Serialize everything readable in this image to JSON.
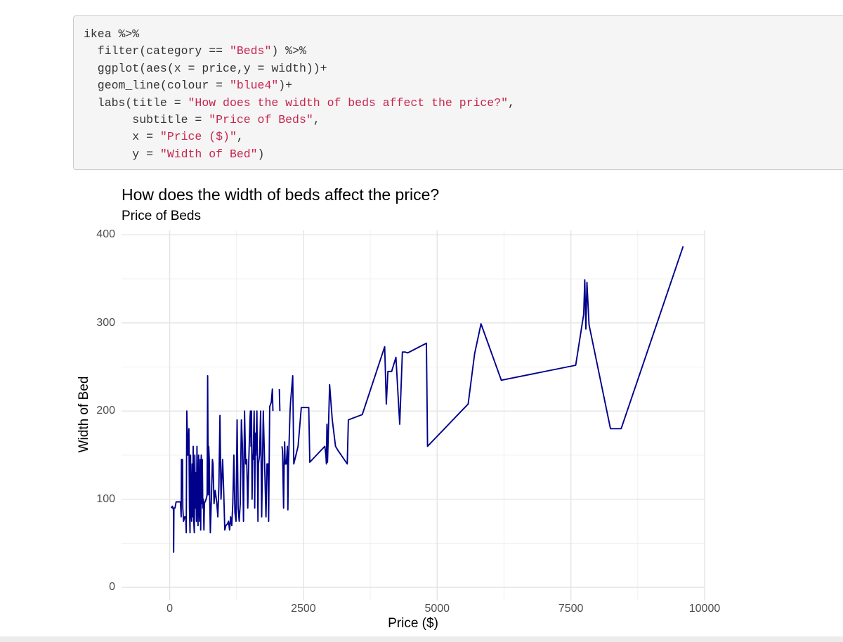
{
  "code": {
    "lines": [
      [
        {
          "t": "ikea %>%",
          "c": "plain"
        }
      ],
      [
        {
          "t": "  filter(category == ",
          "c": "plain"
        },
        {
          "t": "\"Beds\"",
          "c": "str"
        },
        {
          "t": ") %>%",
          "c": "plain"
        }
      ],
      [
        {
          "t": "  ggplot(aes(x = price,y = width))+",
          "c": "plain"
        }
      ],
      [
        {
          "t": "  geom_line(colour = ",
          "c": "plain"
        },
        {
          "t": "\"blue4\"",
          "c": "str"
        },
        {
          "t": ")+",
          "c": "plain"
        }
      ],
      [
        {
          "t": "  labs(title = ",
          "c": "plain"
        },
        {
          "t": "\"How does the width of beds affect the price?\"",
          "c": "str"
        },
        {
          "t": ",",
          "c": "plain"
        }
      ],
      [
        {
          "t": "       subtitle = ",
          "c": "plain"
        },
        {
          "t": "\"Price of Beds\"",
          "c": "str"
        },
        {
          "t": ",",
          "c": "plain"
        }
      ],
      [
        {
          "t": "       x = ",
          "c": "plain"
        },
        {
          "t": "\"Price ($)\"",
          "c": "str"
        },
        {
          "t": ",",
          "c": "plain"
        }
      ],
      [
        {
          "t": "       y = ",
          "c": "plain"
        },
        {
          "t": "\"Width of Bed\"",
          "c": "str"
        },
        {
          "t": ")",
          "c": "plain"
        }
      ]
    ]
  },
  "colors": {
    "line": "#00008B",
    "grid_major": "#e4e4e4",
    "grid_minor": "#f0f0f0",
    "code_string": "#c7254e",
    "code_text": "#333333"
  },
  "chart_data": {
    "type": "line",
    "title": "How does the width of beds affect the price?",
    "subtitle": "Price of Beds",
    "xlabel": "Price ($)",
    "ylabel": "Width of Bed",
    "xlim": [
      -900,
      10000
    ],
    "ylim": [
      -15,
      405
    ],
    "x_ticks": [
      0,
      2500,
      5000,
      7500,
      10000
    ],
    "x_tick_labels": [
      "0",
      "2500",
      "5000",
      "7500",
      "10000"
    ],
    "y_ticks": [
      0,
      100,
      200,
      300,
      400
    ],
    "y_tick_labels": [
      "0",
      "100",
      "200",
      "300",
      "400"
    ],
    "grid": true,
    "series": [
      {
        "color": "#00008B",
        "points": [
          [
            30,
            90
          ],
          [
            50,
            92
          ],
          [
            70,
            88
          ],
          [
            75,
            40
          ],
          [
            80,
            90
          ],
          [
            100,
            90
          ],
          [
            120,
            97
          ],
          [
            150,
            97
          ],
          [
            180,
            97
          ],
          [
            200,
            97
          ],
          [
            215,
            80
          ],
          [
            220,
            145
          ],
          [
            240,
            145
          ],
          [
            245,
            90
          ],
          [
            260,
            75
          ],
          [
            280,
            80
          ],
          [
            300,
            80
          ],
          [
            310,
            62
          ],
          [
            320,
            200
          ],
          [
            340,
            150
          ],
          [
            360,
            180
          ],
          [
            370,
            90
          ],
          [
            380,
            62
          ],
          [
            390,
            150
          ],
          [
            400,
            90
          ],
          [
            410,
            75
          ],
          [
            420,
            140
          ],
          [
            430,
            80
          ],
          [
            440,
            160
          ],
          [
            450,
            75
          ],
          [
            460,
            62
          ],
          [
            470,
            150
          ],
          [
            480,
            90
          ],
          [
            490,
            130
          ],
          [
            500,
            75
          ],
          [
            510,
            160
          ],
          [
            520,
            100
          ],
          [
            530,
            70
          ],
          [
            540,
            150
          ],
          [
            550,
            90
          ],
          [
            560,
            75
          ],
          [
            570,
            145
          ],
          [
            580,
            65
          ],
          [
            590,
            150
          ],
          [
            600,
            95
          ],
          [
            610,
            145
          ],
          [
            620,
            90
          ],
          [
            630,
            100
          ],
          [
            640,
            65
          ],
          [
            650,
            95
          ],
          [
            660,
            97
          ],
          [
            670,
            98
          ],
          [
            680,
            100
          ],
          [
            690,
            102
          ],
          [
            700,
            105
          ],
          [
            710,
            240
          ],
          [
            720,
            105
          ],
          [
            730,
            160
          ],
          [
            740,
            145
          ],
          [
            750,
            100
          ],
          [
            760,
            62
          ],
          [
            780,
            100
          ],
          [
            800,
            145
          ],
          [
            810,
            140
          ],
          [
            830,
            95
          ],
          [
            850,
            110
          ],
          [
            880,
            97
          ],
          [
            900,
            80
          ],
          [
            920,
            115
          ],
          [
            940,
            195
          ],
          [
            960,
            100
          ],
          [
            990,
            145
          ],
          [
            1010,
            110
          ],
          [
            1030,
            65
          ],
          [
            1050,
            70
          ],
          [
            1080,
            72
          ],
          [
            1100,
            75
          ],
          [
            1120,
            65
          ],
          [
            1140,
            80
          ],
          [
            1160,
            70
          ],
          [
            1180,
            95
          ],
          [
            1200,
            150
          ],
          [
            1220,
            85
          ],
          [
            1240,
            75
          ],
          [
            1260,
            190
          ],
          [
            1280,
            90
          ],
          [
            1300,
            75
          ],
          [
            1320,
            95
          ],
          [
            1340,
            190
          ],
          [
            1360,
            160
          ],
          [
            1380,
            75
          ],
          [
            1400,
            200
          ],
          [
            1420,
            140
          ],
          [
            1440,
            145
          ],
          [
            1460,
            90
          ],
          [
            1480,
            145
          ],
          [
            1500,
            190
          ],
          [
            1510,
            200
          ],
          [
            1520,
            160
          ],
          [
            1530,
            200
          ],
          [
            1540,
            100
          ],
          [
            1550,
            150
          ],
          [
            1560,
            145
          ],
          [
            1580,
            200
          ],
          [
            1590,
            90
          ],
          [
            1600,
            175
          ],
          [
            1610,
            150
          ],
          [
            1630,
            200
          ],
          [
            1650,
            75
          ],
          [
            1660,
            140
          ],
          [
            1680,
            150
          ],
          [
            1700,
            200
          ],
          [
            1720,
            80
          ],
          [
            1750,
            200
          ],
          [
            1800,
            80
          ],
          [
            1820,
            140
          ],
          [
            1840,
            140
          ],
          [
            1850,
            75
          ],
          [
            1870,
            205
          ],
          [
            1900,
            210
          ],
          [
            1920,
            225
          ],
          [
            1930,
            200
          ],
          [
            1950,
            null
          ],
          [
            2050,
            225
          ],
          [
            2060,
            200
          ],
          [
            2080,
            null
          ],
          [
            2100,
            160
          ],
          [
            2110,
            155
          ],
          [
            2130,
            90
          ],
          [
            2140,
            140
          ],
          [
            2150,
            165
          ],
          [
            2160,
            140
          ],
          [
            2180,
            140
          ],
          [
            2200,
            160
          ],
          [
            2210,
            88
          ],
          [
            2220,
            140
          ],
          [
            2250,
            200
          ],
          [
            2260,
            210
          ],
          [
            2300,
            240
          ],
          [
            2320,
            140
          ],
          [
            2400,
            160
          ],
          [
            2460,
            204
          ],
          [
            2560,
            204
          ],
          [
            2600,
            204
          ],
          [
            2620,
            142
          ],
          [
            2900,
            160
          ],
          [
            2920,
            150
          ],
          [
            2930,
            140
          ],
          [
            2940,
            185
          ],
          [
            2950,
            142
          ],
          [
            2960,
            160
          ],
          [
            2990,
            230
          ],
          [
            3040,
            190
          ],
          [
            3100,
            160
          ],
          [
            3150,
            155
          ],
          [
            3320,
            140
          ],
          [
            3340,
            190
          ],
          [
            3600,
            196
          ],
          [
            4020,
            273
          ],
          [
            4050,
            208
          ],
          [
            4080,
            245
          ],
          [
            4150,
            245
          ],
          [
            4230,
            261
          ],
          [
            4300,
            185
          ],
          [
            4350,
            267
          ],
          [
            4400,
            267
          ],
          [
            4450,
            266
          ],
          [
            4800,
            277
          ],
          [
            4820,
            160
          ],
          [
            5580,
            208
          ],
          [
            5700,
            265
          ],
          [
            5820,
            299
          ],
          [
            6200,
            235
          ],
          [
            7590,
            252
          ],
          [
            7740,
            310
          ],
          [
            7760,
            349
          ],
          [
            7780,
            293
          ],
          [
            7800,
            346
          ],
          [
            7840,
            298
          ],
          [
            8240,
            180
          ],
          [
            8440,
            180
          ],
          [
            9600,
            387
          ]
        ]
      }
    ]
  }
}
